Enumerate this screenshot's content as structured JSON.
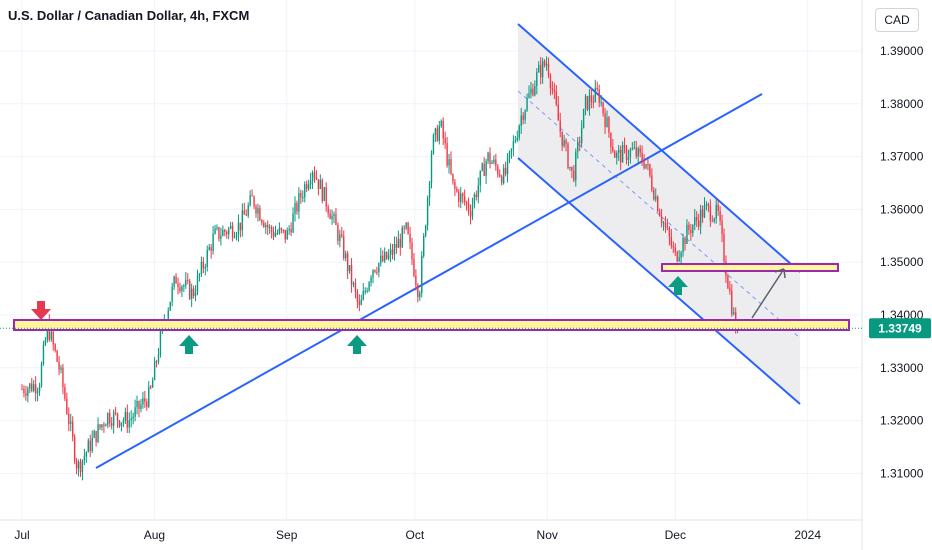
{
  "header": {
    "title": "U.S. Dollar / Canadian Dollar, 4h, FXCM",
    "currency": "CAD"
  },
  "colors": {
    "up": "#089981",
    "down": "#f23645",
    "trendline": "#2962ff",
    "zone_border": "#9c27b0",
    "zone_fill": "#fff59d",
    "channel_fill": "#e8e8ec",
    "arrow_up": "#0b9a82",
    "arrow_down": "#e53950",
    "price_label_bg": "#089981"
  },
  "chart_data": {
    "type": "candlestick",
    "symbol": "U.S. Dollar / Canadian Dollar",
    "interval": "4h",
    "source": "FXCM",
    "x_ticks": [
      "Jul",
      "Aug",
      "Sep",
      "Oct",
      "Nov",
      "Dec",
      "2024"
    ],
    "y_ticks": [
      "1.39000",
      "1.38000",
      "1.37000",
      "1.36000",
      "1.35000",
      "1.34000",
      "1.33000",
      "1.32000",
      "1.31000"
    ],
    "ylim": [
      1.3045,
      1.3935
    ],
    "last_price": "1.33749",
    "price_path": [
      [
        "2023-07-01",
        1.326
      ],
      [
        "2023-07-05",
        1.327
      ],
      [
        "2023-07-07",
        1.338
      ],
      [
        "2023-07-10",
        1.329
      ],
      [
        "2023-07-14",
        1.311
      ],
      [
        "2023-07-18",
        1.317
      ],
      [
        "2023-07-21",
        1.321
      ],
      [
        "2023-07-26",
        1.32
      ],
      [
        "2023-07-31",
        1.325
      ],
      [
        "2023-08-03",
        1.338
      ],
      [
        "2023-08-06",
        1.347
      ],
      [
        "2023-08-10",
        1.344
      ],
      [
        "2023-08-15",
        1.355
      ],
      [
        "2023-08-21",
        1.357
      ],
      [
        "2023-08-24",
        1.362
      ],
      [
        "2023-08-28",
        1.356
      ],
      [
        "2023-09-01",
        1.355
      ],
      [
        "2023-09-04",
        1.362
      ],
      [
        "2023-09-07",
        1.368
      ],
      [
        "2023-09-11",
        1.36
      ],
      [
        "2023-09-14",
        1.353
      ],
      [
        "2023-09-18",
        1.341
      ],
      [
        "2023-09-21",
        1.349
      ],
      [
        "2023-09-25",
        1.351
      ],
      [
        "2023-09-29",
        1.356
      ],
      [
        "2023-10-02",
        1.344
      ],
      [
        "2023-10-05",
        1.372
      ],
      [
        "2023-10-07",
        1.376
      ],
      [
        "2023-10-10",
        1.364
      ],
      [
        "2023-10-14",
        1.36
      ],
      [
        "2023-10-18",
        1.37
      ],
      [
        "2023-10-22",
        1.366
      ],
      [
        "2023-10-26",
        1.378
      ],
      [
        "2023-10-30",
        1.386
      ],
      [
        "2023-11-01",
        1.388
      ],
      [
        "2023-11-04",
        1.375
      ],
      [
        "2023-11-07",
        1.366
      ],
      [
        "2023-11-10",
        1.38
      ],
      [
        "2023-11-13",
        1.382
      ],
      [
        "2023-11-17",
        1.37
      ],
      [
        "2023-11-21",
        1.371
      ],
      [
        "2023-11-24",
        1.369
      ],
      [
        "2023-11-28",
        1.358
      ],
      [
        "2023-12-01",
        1.351
      ],
      [
        "2023-12-04",
        1.356
      ],
      [
        "2023-12-08",
        1.36
      ],
      [
        "2023-12-11",
        1.359
      ],
      [
        "2023-12-13",
        1.348
      ],
      [
        "2023-12-15",
        1.338
      ],
      [
        "2023-12-16",
        1.337
      ]
    ]
  }
}
